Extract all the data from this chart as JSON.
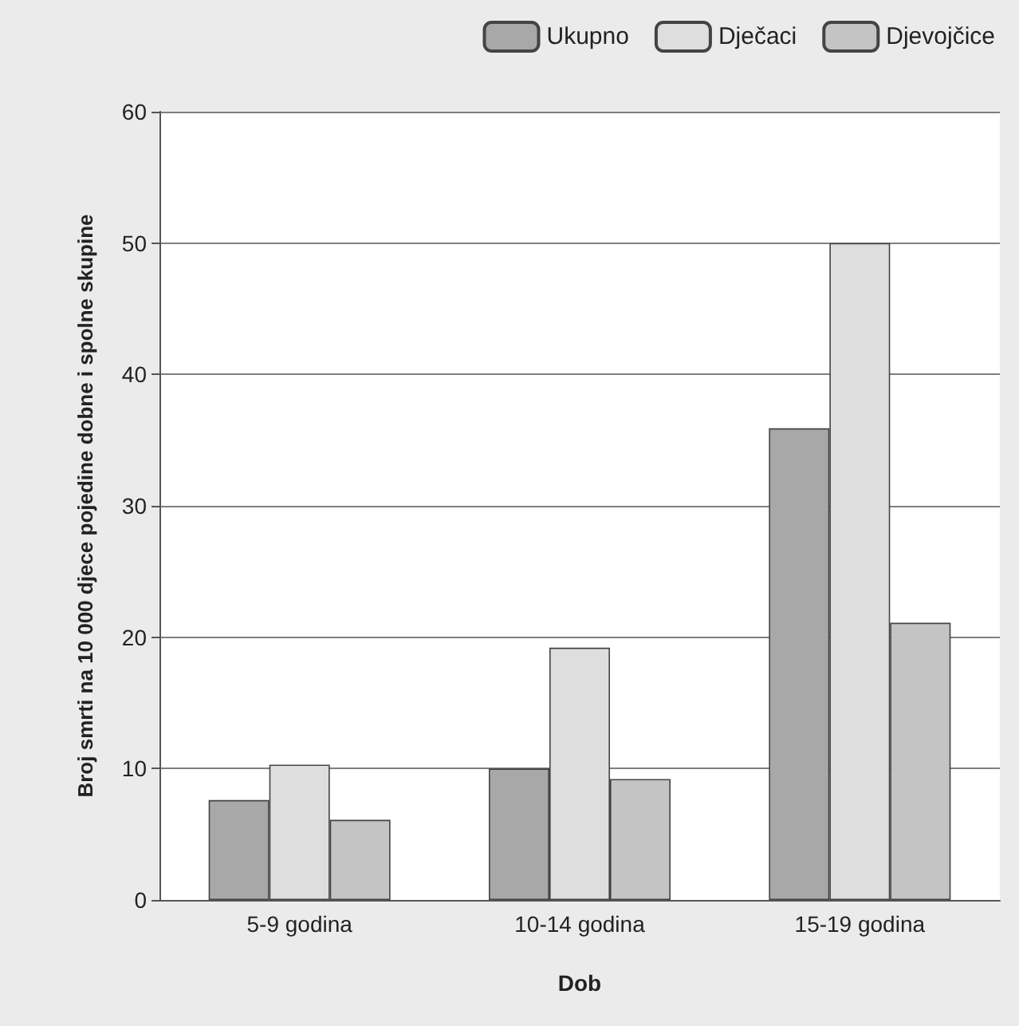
{
  "chart_data": {
    "type": "bar",
    "xlabel": "Dob",
    "ylabel": "Broj smrti na 10 000 djece pojedine dobne i spolne skupine",
    "categories": [
      "5-9 godina",
      "10-14 godina",
      "15-19 godina"
    ],
    "series": [
      {
        "name": "Ukupno",
        "color": "#a8a8a8",
        "values": [
          7.6,
          10.0,
          35.9
        ]
      },
      {
        "name": "Dječaci",
        "color": "#dedede",
        "values": [
          10.3,
          19.2,
          50.0
        ]
      },
      {
        "name": "Djevojčice",
        "color": "#c4c4c4",
        "values": [
          6.1,
          9.2,
          21.1
        ]
      }
    ],
    "ylim": [
      0,
      60
    ],
    "yticks": [
      0,
      10,
      20,
      30,
      40,
      50,
      60
    ],
    "grid": "y",
    "legend": "top right"
  }
}
